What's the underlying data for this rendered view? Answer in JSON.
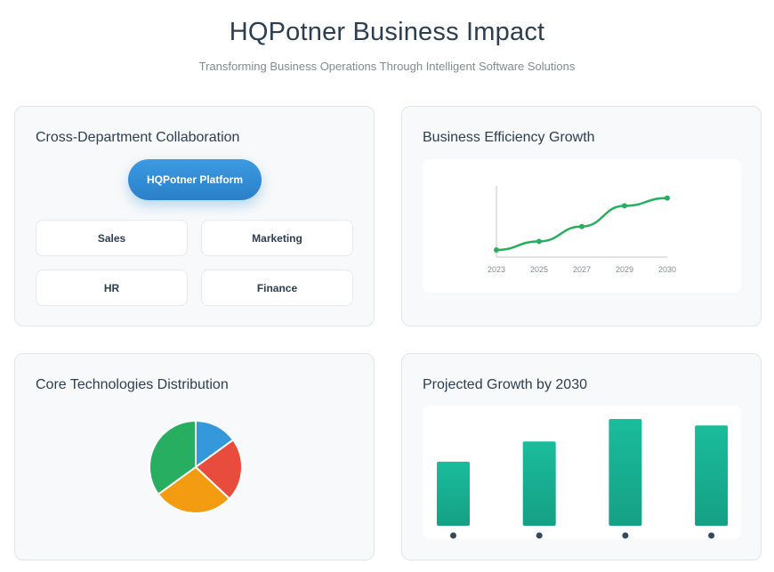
{
  "header": {
    "title": "HQPotner Business Impact",
    "subtitle": "Transforming Business Operations Through Intelligent Software Solutions"
  },
  "collaboration": {
    "title": "Cross-Department Collaboration",
    "platform_label": "HQPotner Platform",
    "departments": [
      "Sales",
      "Marketing",
      "HR",
      "Finance"
    ]
  },
  "colors": {
    "platform_blue": "#3498db",
    "line_green": "#27ae60",
    "bar_teal": "#1abc9c",
    "pie": [
      "#3498db",
      "#e74c3c",
      "#f39c12",
      "#27ae60"
    ]
  },
  "chart_data": [
    {
      "type": "line",
      "title": "Business Efficiency Growth",
      "x": [
        "2023",
        "2025",
        "2027",
        "2029",
        "2030"
      ],
      "series": [
        {
          "values": [
            10,
            22,
            43,
            72,
            83
          ]
        }
      ],
      "ylim": [
        0,
        100
      ],
      "xlabel": "",
      "ylabel": "",
      "grid": false
    },
    {
      "type": "pie",
      "title": "Core Technologies Distribution",
      "values": [
        15,
        22,
        28,
        35
      ]
    },
    {
      "type": "bar",
      "title": "Projected Growth by 2030",
      "values": [
        60,
        79,
        100,
        94
      ],
      "ylim": [
        0,
        100
      ]
    }
  ]
}
